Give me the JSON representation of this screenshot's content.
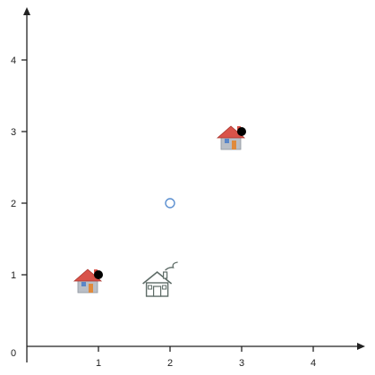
{
  "chart_data": {
    "type": "scatter",
    "title": "",
    "xlabel": "",
    "ylabel": "",
    "xlim": [
      0,
      4.8
    ],
    "ylim": [
      0,
      4.6
    ],
    "grid": false,
    "x_ticks": [
      {
        "value": 0,
        "label": "0"
      },
      {
        "value": 1,
        "label": "1"
      },
      {
        "value": 2,
        "label": "2"
      },
      {
        "value": 3,
        "label": "3"
      },
      {
        "value": 4,
        "label": "4"
      }
    ],
    "y_ticks": [
      {
        "value": 1,
        "label": "1"
      },
      {
        "value": 2,
        "label": "2"
      },
      {
        "value": 3,
        "label": "3"
      },
      {
        "value": 4,
        "label": "4"
      }
    ],
    "points": [
      {
        "x": 1,
        "y": 1,
        "style": "filled",
        "color": "#000000"
      },
      {
        "x": 2,
        "y": 2,
        "style": "hollow",
        "color": "#5b8fd0"
      },
      {
        "x": 3,
        "y": 3,
        "style": "filled",
        "color": "#000000"
      }
    ],
    "markers": [
      {
        "icon": "house-icon",
        "variant": "colored",
        "x": 0.85,
        "y": 0.75
      },
      {
        "icon": "house-icon",
        "variant": "outline-smoke",
        "x": 1.82,
        "y": 0.7
      },
      {
        "icon": "house-icon",
        "variant": "colored",
        "x": 2.85,
        "y": 2.75
      }
    ],
    "colors": {
      "axis": "#222222",
      "roof": "#d9534a",
      "wall": "#b9bec6",
      "door": "#e08a3c",
      "window": "#5a86c8",
      "outline_house": "#5d6b66"
    }
  }
}
